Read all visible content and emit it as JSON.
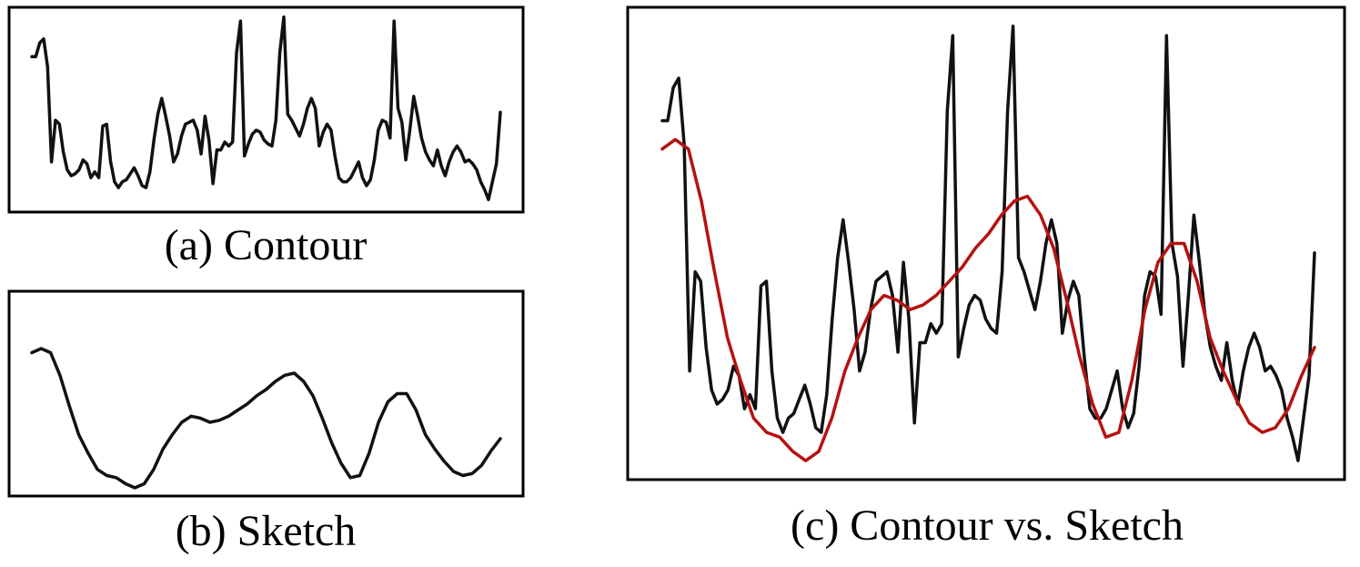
{
  "chart_data": [
    {
      "type": "line",
      "caption": "(a) Contour",
      "ylim": [
        0,
        100
      ],
      "series": [
        {
          "color": "#111111",
          "values": [
            76,
            76,
            83,
            85,
            71,
            23,
            44,
            42,
            28,
            19,
            16,
            17,
            19,
            24,
            22,
            15,
            18,
            15,
            41,
            42,
            23,
            13,
            10,
            13,
            14,
            17,
            20,
            16,
            11,
            10,
            18,
            34,
            47,
            55,
            46,
            36,
            23,
            27,
            36,
            42,
            43,
            44,
            39,
            27,
            46,
            34,
            12,
            29,
            29,
            33,
            31,
            33,
            78,
            94,
            26,
            32,
            37,
            39,
            38,
            34,
            32,
            31,
            44,
            78,
            96,
            47,
            44,
            40,
            36,
            42,
            50,
            55,
            50,
            31,
            38,
            42,
            39,
            26,
            15,
            13,
            13,
            15,
            19,
            23,
            15,
            11,
            14,
            24,
            39,
            44,
            43,
            35,
            94,
            50,
            43,
            24,
            39,
            56,
            46,
            35,
            28,
            24,
            21,
            29,
            21,
            16,
            23,
            28,
            31,
            28,
            23,
            24,
            22,
            19,
            13,
            9,
            4,
            13,
            22,
            48
          ]
        }
      ]
    },
    {
      "type": "line",
      "caption": "(b) Sketch",
      "ylim": [
        0,
        100
      ],
      "series": [
        {
          "color": "#111111",
          "values": [
            70,
            72,
            70,
            59,
            44,
            30,
            21,
            13,
            10,
            9,
            6,
            4,
            6,
            13,
            23,
            30,
            36,
            39,
            38,
            36,
            37,
            39,
            42,
            45,
            49,
            52,
            56,
            59,
            60,
            56,
            49,
            38,
            26,
            16,
            9,
            10,
            21,
            36,
            46,
            50,
            50,
            42,
            30,
            23,
            17,
            12,
            10,
            11,
            15,
            22,
            28
          ]
        }
      ]
    },
    {
      "type": "line",
      "caption": "(c) Contour vs. Sketch",
      "ylim": [
        0,
        100
      ],
      "series": [
        {
          "color": "#111111",
          "values": [
            76,
            76,
            83,
            85,
            71,
            23,
            44,
            42,
            28,
            19,
            16,
            17,
            19,
            24,
            22,
            15,
            18,
            15,
            41,
            42,
            23,
            13,
            10,
            13,
            14,
            17,
            20,
            16,
            11,
            10,
            18,
            34,
            47,
            55,
            46,
            36,
            23,
            27,
            36,
            42,
            43,
            44,
            39,
            27,
            46,
            34,
            12,
            29,
            29,
            33,
            31,
            33,
            78,
            94,
            26,
            32,
            37,
            39,
            38,
            34,
            32,
            31,
            44,
            78,
            96,
            47,
            44,
            40,
            36,
            42,
            50,
            55,
            50,
            31,
            38,
            42,
            39,
            26,
            15,
            13,
            13,
            15,
            19,
            23,
            15,
            11,
            14,
            24,
            39,
            44,
            43,
            35,
            94,
            50,
            43,
            24,
            39,
            56,
            46,
            35,
            28,
            24,
            21,
            29,
            21,
            16,
            23,
            28,
            31,
            28,
            23,
            24,
            22,
            19,
            13,
            9,
            4,
            13,
            22,
            48
          ]
        },
        {
          "color": "#b5120f",
          "values": [
            70,
            72,
            70,
            59,
            44,
            30,
            21,
            13,
            10,
            9,
            6,
            4,
            6,
            13,
            23,
            30,
            36,
            39,
            38,
            36,
            37,
            39,
            42,
            45,
            49,
            52,
            56,
            59,
            60,
            56,
            49,
            38,
            26,
            16,
            9,
            10,
            21,
            36,
            46,
            50,
            50,
            42,
            30,
            23,
            17,
            12,
            10,
            11,
            15,
            22,
            28
          ]
        }
      ]
    }
  ]
}
